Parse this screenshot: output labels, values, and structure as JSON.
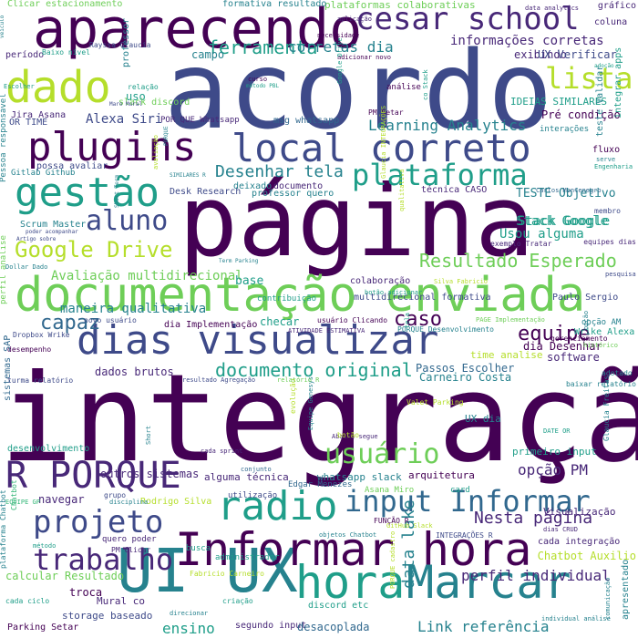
{
  "palette": {
    "dark_purple": "#440154",
    "purple": "#482878",
    "indigo": "#3e4a89",
    "blue": "#31688e",
    "teal": "#26828e",
    "green_teal": "#1f9e89",
    "green": "#35b779",
    "light_green": "#6ece58",
    "yellow_green": "#b5de2b",
    "yellow": "#fde725"
  },
  "words": [
    {
      "text": "integração",
      "color": "dark_purple"
    },
    {
      "text": "página",
      "color": "dark_purple"
    },
    {
      "text": "acordo",
      "color": "indigo"
    },
    {
      "text": "documentação enviada",
      "color": "light_green"
    },
    {
      "text": "aparecendo",
      "color": "dark_purple"
    },
    {
      "text": "dias visualizar",
      "color": "indigo"
    },
    {
      "text": "UI UX",
      "color": "teal"
    },
    {
      "text": "Informar hora",
      "color": "dark_purple"
    },
    {
      "text": "hora",
      "color": "green_teal"
    },
    {
      "text": "Marcar",
      "color": "teal"
    },
    {
      "text": "local correto",
      "color": "indigo"
    },
    {
      "text": "plugins",
      "color": "dark_purple"
    },
    {
      "text": "gestão",
      "color": "green_teal"
    },
    {
      "text": "dado",
      "color": "yellow_green"
    },
    {
      "text": "plataforma",
      "color": "green_teal"
    },
    {
      "text": "cesar school",
      "color": "purple"
    },
    {
      "text": "R PORQUE",
      "color": "purple"
    },
    {
      "text": "radio",
      "color": "green_teal"
    },
    {
      "text": "input Informar",
      "color": "blue"
    },
    {
      "text": "projeto",
      "color": "indigo"
    },
    {
      "text": "trabalho",
      "color": "purple"
    },
    {
      "text": "lista",
      "color": "yellow_green"
    },
    {
      "text": "aluno",
      "color": "indigo"
    },
    {
      "text": "Google Drive",
      "color": "yellow_green"
    },
    {
      "text": "usuário",
      "color": "light_green"
    },
    {
      "text": "Resultado Esperado",
      "color": "light_green"
    },
    {
      "text": "documento original",
      "color": "green_teal"
    },
    {
      "text": "Desenhar tela",
      "color": "teal"
    },
    {
      "text": "ferramenta",
      "color": "green_teal"
    },
    {
      "text": "corretas dia",
      "color": "teal"
    },
    {
      "text": "informações corretas",
      "color": "purple"
    },
    {
      "text": "Learning Analytics",
      "color": "teal"
    },
    {
      "text": "capaz",
      "color": "blue"
    },
    {
      "text": "caso",
      "color": "dark_purple"
    },
    {
      "text": "equipe",
      "color": "dark_purple"
    },
    {
      "text": "Nesta página",
      "color": "purple"
    },
    {
      "text": "Stack Google",
      "color": "green_teal"
    },
    {
      "text": "Usou alguma",
      "color": "green_teal"
    },
    {
      "text": "Avaliação multidirecional",
      "color": "light_green"
    },
    {
      "text": "maneira qualitativa",
      "color": "teal"
    },
    {
      "text": "opção PM",
      "color": "purple"
    },
    {
      "text": "perfil individual",
      "color": "purple"
    },
    {
      "text": "Link referência",
      "color": "teal"
    },
    {
      "text": "data lake",
      "color": "teal"
    },
    {
      "text": "ensino",
      "color": "green_teal"
    },
    {
      "text": "Alexa Siri",
      "color": "indigo"
    },
    {
      "text": "Pré condição",
      "color": "dark_purple"
    },
    {
      "text": "exibindo",
      "color": "purple"
    },
    {
      "text": "UX Verificar",
      "color": "indigo"
    },
    {
      "text": "IDEIAS SIMILARES",
      "color": "green_teal"
    },
    {
      "text": "Clicar estacionamento",
      "color": "light_green"
    },
    {
      "text": "plataformas colaborativas",
      "color": "light_green"
    },
    {
      "text": "formativa resultado",
      "color": "teal"
    },
    {
      "text": "coluna",
      "color": "purple"
    },
    {
      "text": "gráfico",
      "color": "purple"
    },
    {
      "text": "campo",
      "color": "teal"
    },
    {
      "text": "uso",
      "color": "green_teal"
    },
    {
      "text": "slack discord",
      "color": "light_green"
    },
    {
      "text": "Jira Asana",
      "color": "purple"
    },
    {
      "text": "OR TIME",
      "color": "indigo"
    },
    {
      "text": "Scrum Master",
      "color": "teal"
    },
    {
      "text": "Gitlab Github",
      "color": "teal"
    },
    {
      "text": "Desk Research",
      "color": "indigo"
    },
    {
      "text": "técnica CASO",
      "color": "purple"
    },
    {
      "text": "TESTE Objetivo",
      "color": "teal"
    },
    {
      "text": "colaboração",
      "color": "purple"
    },
    {
      "text": "base",
      "color": "green_teal"
    },
    {
      "text": "multidirecional formativa",
      "color": "indigo"
    },
    {
      "text": "Paulo Sergio",
      "color": "indigo"
    },
    {
      "text": "dia Implementação",
      "color": "dark_purple"
    },
    {
      "text": "checar",
      "color": "green_teal"
    },
    {
      "text": "dia Desenhar",
      "color": "dark_purple"
    },
    {
      "text": "Wrike Alexa",
      "color": "green_teal"
    },
    {
      "text": "software",
      "color": "purple"
    },
    {
      "text": "dados brutos",
      "color": "purple"
    },
    {
      "text": "Passos Escolher",
      "color": "blue"
    },
    {
      "text": "Carneiro Costa",
      "color": "teal"
    },
    {
      "text": "time analise",
      "color": "yellow_green"
    },
    {
      "text": "UX dia",
      "color": "teal"
    },
    {
      "text": "primeiro input",
      "color": "green_teal"
    },
    {
      "text": "arquitetura",
      "color": "dark_purple"
    },
    {
      "text": "whatsapp slack",
      "color": "teal"
    },
    {
      "text": "alguma técnica",
      "color": "purple"
    },
    {
      "text": "outros sistemas",
      "color": "purple"
    },
    {
      "text": "desenvolvimento",
      "color": "green_teal"
    },
    {
      "text": "navegar",
      "color": "purple"
    },
    {
      "text": "Rodrigo Silva",
      "color": "yellow_green"
    },
    {
      "text": "Visualização",
      "color": "purple"
    },
    {
      "text": "cada integração",
      "color": "purple"
    },
    {
      "text": "Chatbot Auxilio",
      "color": "yellow_green"
    },
    {
      "text": "calcular Resultado",
      "color": "light_green"
    },
    {
      "text": "troca",
      "color": "dark_purple"
    },
    {
      "text": "Mural co",
      "color": "purple"
    },
    {
      "text": "storage baseado",
      "color": "indigo"
    },
    {
      "text": "Parking Setar",
      "color": "dark_purple"
    },
    {
      "text": "segundo input",
      "color": "purple"
    },
    {
      "text": "desacoplada",
      "color": "blue"
    },
    {
      "text": "discord etc",
      "color": "green_teal"
    },
    {
      "text": "INTEGRAÇÕES R",
      "color": "indigo"
    },
    {
      "text": "Fabricio Carneiro",
      "color": "yellow_green"
    },
    {
      "text": "administrador",
      "color": "green_teal"
    },
    {
      "text": "busca",
      "color": "green_teal"
    },
    {
      "text": "msg whatsapp",
      "color": "blue"
    },
    {
      "text": "POR QUE Whatsapp",
      "color": "purple"
    },
    {
      "text": "PM Setar",
      "color": "dark_purple"
    },
    {
      "text": "análise",
      "color": "dark_purple"
    },
    {
      "text": "fluxo",
      "color": "dark_purple"
    },
    {
      "text": "membro",
      "color": "indigo"
    },
    {
      "text": "equipes dias",
      "color": "purple"
    },
    {
      "text": "Stack Google",
      "color": "green_teal"
    },
    {
      "text": "documento",
      "color": "purple"
    },
    {
      "text": "deixado",
      "color": "teal"
    },
    {
      "text": "professor quero",
      "color": "teal"
    },
    {
      "text": "possa avaliar",
      "color": "indigo"
    },
    {
      "text": "Pessoa responsável",
      "color": "teal"
    },
    {
      "text": "professor",
      "color": "teal"
    },
    {
      "text": "período",
      "color": "purple"
    },
    {
      "text": "Rayssa Glaucia",
      "color": "indigo"
    },
    {
      "text": "Baixo nível",
      "color": "green_teal"
    },
    {
      "text": "relação",
      "color": "green_teal"
    },
    {
      "text": "aplicação",
      "color": "purple"
    },
    {
      "text": "necessidade",
      "color": "dark_purple"
    },
    {
      "text": "adicionar novo",
      "color": "dark_purple"
    },
    {
      "text": "data analytics",
      "color": "purple"
    },
    {
      "text": "interações",
      "color": "teal"
    },
    {
      "text": "teste Validar",
      "color": "teal"
    },
    {
      "text": "integrar apps",
      "color": "green_teal"
    },
    {
      "text": "Carlos Montenegro",
      "color": "blue"
    },
    {
      "text": "exemplo Tratar",
      "color": "purple"
    },
    {
      "text": "pesquisa",
      "color": "indigo"
    },
    {
      "text": "novo usuário",
      "color": "indigo"
    },
    {
      "text": "usuário Clicando",
      "color": "dark_purple"
    },
    {
      "text": "PORQUE Desenvolvimento",
      "color": "teal"
    },
    {
      "text": "opção AM",
      "color": "teal"
    },
    {
      "text": "desempenho",
      "color": "dark_purple"
    },
    {
      "text": "sistemas SAP",
      "color": "blue"
    },
    {
      "text": "turma relatório",
      "color": "indigo"
    },
    {
      "text": "Valet Parking",
      "color": "yellow_green"
    },
    {
      "text": "Abaixo segue",
      "color": "purple"
    },
    {
      "text": "Equipe Genesys",
      "color": "teal"
    },
    {
      "text": "botão",
      "color": "yellow_green"
    },
    {
      "text": "cada sprint",
      "color": "purple"
    },
    {
      "text": "utilização",
      "color": "indigo"
    },
    {
      "text": "Edgar Menezes",
      "color": "blue"
    },
    {
      "text": "Asana Miro",
      "color": "light_green"
    },
    {
      "text": "card",
      "color": "green_teal"
    },
    {
      "text": "grupo",
      "color": "indigo"
    },
    {
      "text": "disciplina",
      "color": "teal"
    },
    {
      "text": "quero poder",
      "color": "purple"
    },
    {
      "text": "PM Clicar",
      "color": "purple"
    },
    {
      "text": "FUNÇÃO R",
      "color": "dark_purple"
    },
    {
      "text": "objetos Chatbot",
      "color": "teal"
    },
    {
      "text": "dias CRUD",
      "color": "purple"
    },
    {
      "text": "criação",
      "color": "green_teal"
    },
    {
      "text": "direcionar",
      "color": "teal"
    },
    {
      "text": "cada ciclo",
      "color": "green_teal"
    },
    {
      "text": "método",
      "color": "green_teal"
    },
    {
      "text": "apresentado",
      "color": "teal"
    },
    {
      "text": "comunicação",
      "color": "teal"
    },
    {
      "text": "conjunto",
      "color": "blue"
    },
    {
      "text": "contribuição",
      "color": "green_teal"
    },
    {
      "text": "histórico",
      "color": "light_green"
    },
    {
      "text": "gerenciamento",
      "color": "dark_purple"
    },
    {
      "text": "adotado",
      "color": "teal"
    },
    {
      "text": "baixar relatório",
      "color": "teal"
    },
    {
      "text": "resultado Agregação",
      "color": "indigo"
    },
    {
      "text": "ATIVIDADE ESTIMATIVA",
      "color": "purple"
    },
    {
      "text": "Dropbox Wrike",
      "color": "indigo"
    },
    {
      "text": "perfil análise",
      "color": "light_green"
    },
    {
      "text": "DATE OR",
      "color": "green_teal"
    },
    {
      "text": "Glaucia Freitas",
      "color": "teal"
    },
    {
      "text": "Term Parking",
      "color": "teal"
    },
    {
      "text": "Dollar Dado",
      "color": "teal"
    },
    {
      "text": "Artigo sobre",
      "color": "indigo"
    },
    {
      "text": "poder acompanhar",
      "color": "indigo"
    },
    {
      "text": "Short Term",
      "color": "teal"
    },
    {
      "text": "SIMILARES R",
      "color": "teal"
    },
    {
      "text": "PORQUE",
      "color": "teal"
    },
    {
      "text": "Engenharia",
      "color": "green_teal"
    },
    {
      "text": "serve",
      "color": "teal"
    },
    {
      "text": "curso",
      "color": "dark_purple"
    },
    {
      "text": "método PBL",
      "color": "green_teal"
    },
    {
      "text": "Maro Mural",
      "color": "indigo"
    },
    {
      "text": "Escolher",
      "color": "green_teal"
    },
    {
      "text": "veículo",
      "color": "teal"
    },
    {
      "text": "adoção",
      "color": "green_teal"
    },
    {
      "text": "Google Drive",
      "color": "green_teal"
    },
    {
      "text": "co Stack",
      "color": "green_teal"
    },
    {
      "text": "Glaucia INTEGRAÇÕES",
      "color": "yellow_green"
    },
    {
      "text": "qualitativa",
      "color": "yellow_green"
    },
    {
      "text": "botão adicionar",
      "color": "green_teal"
    },
    {
      "text": "Silva Fabricio",
      "color": "yellow_green"
    },
    {
      "text": "PAGE Implementação",
      "color": "light_green"
    },
    {
      "text": "tela",
      "color": "green_teal"
    },
    {
      "text": "avaliação",
      "color": "yellow_green"
    },
    {
      "text": "evolução",
      "color": "yellow_green"
    },
    {
      "text": "relatório R",
      "color": "light_green"
    },
    {
      "text": "Short",
      "color": "teal"
    },
    {
      "text": "opção",
      "color": "teal"
    },
    {
      "text": "Chatbot",
      "color": "green"
    },
    {
      "text": "EQUIPE GP",
      "color": "green"
    },
    {
      "text": "plataforma Chatbot",
      "color": "teal"
    },
    {
      "text": "individual análise",
      "color": "teal"
    },
    {
      "text": "GitHub Slack",
      "color": "yellow_green"
    },
    {
      "text": "PORQUE cadastro",
      "color": "yellow_green"
    }
  ]
}
